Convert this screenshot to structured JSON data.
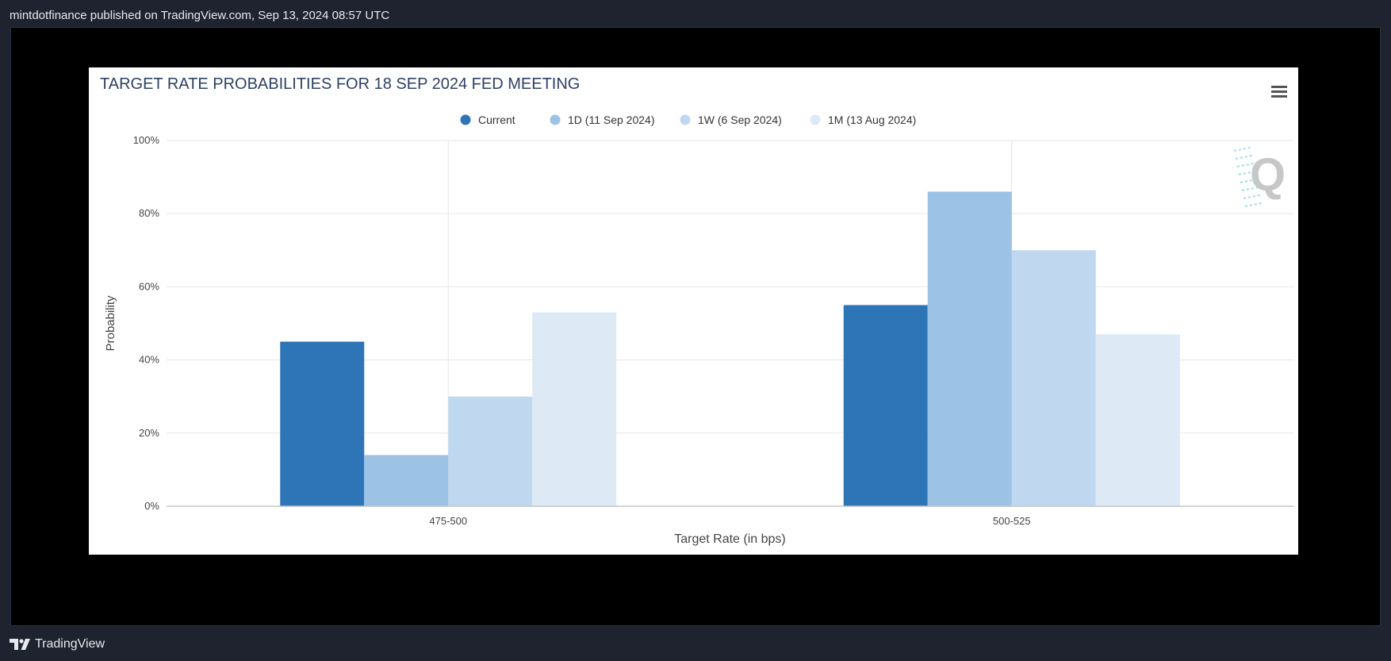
{
  "header": {
    "publish_info": "mintdotfinance published on TradingView.com, Sep 13, 2024 08:57 UTC"
  },
  "footer": {
    "brand": "TradingView"
  },
  "chart_data": {
    "type": "bar",
    "title": "TARGET RATE PROBABILITIES FOR 18 SEP 2024 FED MEETING",
    "xlabel": "Target Rate (in bps)",
    "ylabel": "Probability",
    "ylim": [
      0,
      100
    ],
    "y_ticks": [
      0,
      20,
      40,
      60,
      80,
      100
    ],
    "y_tick_labels": [
      "0%",
      "20%",
      "40%",
      "60%",
      "80%",
      "100%"
    ],
    "categories": [
      "475-500",
      "500-525"
    ],
    "series": [
      {
        "name": "Current",
        "values": [
          45,
          55
        ],
        "color": "#2e75b8"
      },
      {
        "name": "1D (11 Sep 2024)",
        "values": [
          14,
          86
        ],
        "color": "#9cc2e6"
      },
      {
        "name": "1W (6 Sep 2024)",
        "values": [
          30,
          70
        ],
        "color": "#bfd8ef"
      },
      {
        "name": "1M (13 Aug 2024)",
        "values": [
          53,
          47
        ],
        "color": "#dde9f5"
      }
    ],
    "legend_position": "top-center",
    "grid": true,
    "watermark": "Q"
  },
  "colors": {
    "title": "#2f4063",
    "axis_text": "#444444",
    "grid": "#e6e6e6"
  }
}
